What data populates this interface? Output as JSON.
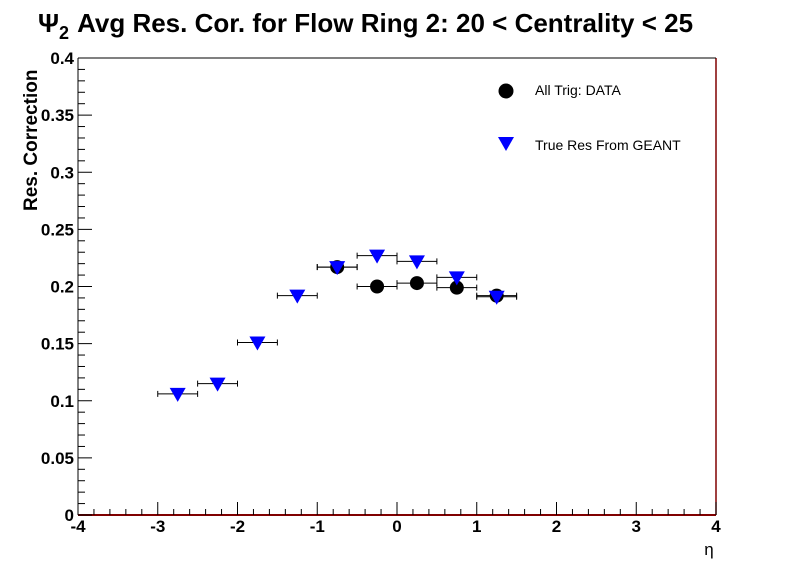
{
  "chart_data": {
    "type": "scatter",
    "title": {
      "symbol": "Ψ",
      "subscript": "2",
      "text": "Avg Res. Cor. for Flow Ring 2: 20 < Centrality < 25"
    },
    "xlabel": "η",
    "ylabel": "Res. Correction",
    "xlim": [
      -4,
      4
    ],
    "ylim": [
      0,
      0.4
    ],
    "x_ticks": [
      -4,
      -3,
      -2,
      -1,
      0,
      1,
      2,
      3,
      4
    ],
    "x_tick_labels": [
      "-4",
      "-3",
      "-2",
      "-1",
      "0",
      "1",
      "2",
      "3",
      "4"
    ],
    "y_ticks": [
      0,
      0.05,
      0.1,
      0.15,
      0.2,
      0.25,
      0.3,
      0.35,
      0.4
    ],
    "y_tick_labels": [
      "0",
      "0.05",
      "0.1",
      "0.15",
      "0.2",
      "0.25",
      "0.3",
      "0.35",
      "0.4"
    ],
    "grid": false,
    "legend_position": "top-right",
    "series": [
      {
        "name": "All Trig: DATA",
        "marker": "circle",
        "color": "#000000",
        "points": [
          {
            "x": -0.75,
            "y": 0.217,
            "xerr": 0.25
          },
          {
            "x": -0.25,
            "y": 0.2,
            "xerr": 0.25
          },
          {
            "x": 0.25,
            "y": 0.203,
            "xerr": 0.25
          },
          {
            "x": 0.75,
            "y": 0.199,
            "xerr": 0.25
          },
          {
            "x": 1.25,
            "y": 0.192,
            "xerr": 0.25
          }
        ]
      },
      {
        "name": "True Res From GEANT",
        "marker": "triangle-down",
        "color": "#0000ff",
        "points": [
          {
            "x": -2.75,
            "y": 0.106,
            "xerr": 0.25
          },
          {
            "x": -2.25,
            "y": 0.115,
            "xerr": 0.25
          },
          {
            "x": -1.75,
            "y": 0.151,
            "xerr": 0.25
          },
          {
            "x": -1.25,
            "y": 0.192,
            "xerr": 0.25
          },
          {
            "x": -0.75,
            "y": 0.217,
            "xerr": 0.25
          },
          {
            "x": -0.25,
            "y": 0.227,
            "xerr": 0.25
          },
          {
            "x": 0.25,
            "y": 0.222,
            "xerr": 0.25
          },
          {
            "x": 0.75,
            "y": 0.208,
            "xerr": 0.25
          },
          {
            "x": 1.25,
            "y": 0.191,
            "xerr": 0.25
          }
        ]
      }
    ]
  }
}
